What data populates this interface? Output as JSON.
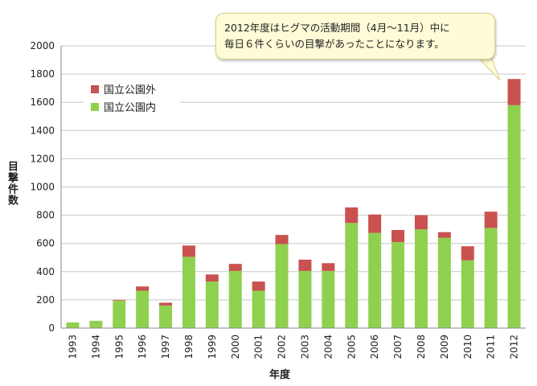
{
  "chart_data": {
    "type": "bar",
    "stacked": true,
    "categories": [
      "1993",
      "1994",
      "1995",
      "1996",
      "1997",
      "1998",
      "1999",
      "2000",
      "2001",
      "2002",
      "2003",
      "2004",
      "2005",
      "2006",
      "2007",
      "2008",
      "2009",
      "2010",
      "2011",
      "2012"
    ],
    "series": [
      {
        "name": "国立公園内",
        "color": "#8fd14f",
        "values": [
          40,
          52,
          195,
          265,
          160,
          505,
          330,
          405,
          265,
          595,
          405,
          405,
          745,
          675,
          610,
          700,
          640,
          480,
          710,
          1580
        ]
      },
      {
        "name": "国立公園外",
        "color": "#c9514f",
        "values": [
          0,
          0,
          5,
          30,
          20,
          80,
          50,
          50,
          65,
          65,
          80,
          55,
          110,
          130,
          85,
          100,
          40,
          100,
          115,
          185
        ]
      }
    ],
    "xlabel": "年度",
    "ylabel": "目撃件数",
    "ylim": [
      0,
      2000
    ],
    "yticks": [
      0,
      200,
      400,
      600,
      800,
      1000,
      1200,
      1400,
      1600,
      1800,
      2000
    ],
    "grid": true,
    "legend_position": "top-left",
    "legend_order": [
      "国立公園外",
      "国立公園内"
    ],
    "annotation": {
      "line1": "2012年度はヒグマの活動期間（4月〜11月）中に",
      "line2": "毎日６件くらいの目撃があったことになります。"
    }
  }
}
